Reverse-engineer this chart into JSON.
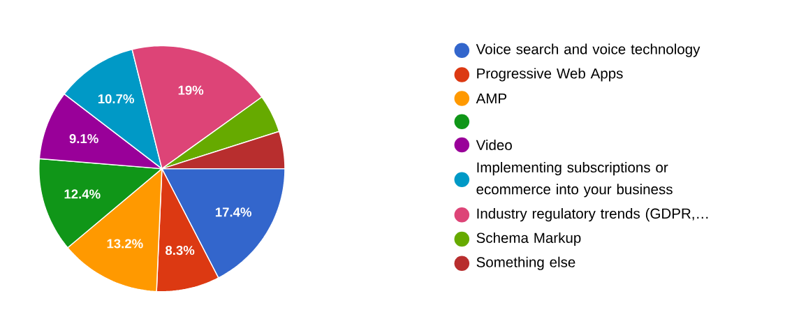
{
  "chart_data": {
    "type": "pie",
    "categories": [
      "Voice search and voice technology",
      "Progressive Web Apps",
      "AMP",
      null,
      "Video",
      "Implementing subscriptions or ecommerce into your business",
      "Industry regulatory trends (GDPR,…",
      "Schema Markup",
      "Something else"
    ],
    "values": [
      17.4,
      8.3,
      13.2,
      12.4,
      9.1,
      10.7,
      19,
      5.0,
      4.9
    ],
    "value_labels": [
      "17.4%",
      "8.3%",
      "13.2%",
      "12.4%",
      "9.1%",
      "10.7%",
      "19%",
      null,
      null
    ],
    "colors": [
      "#3366cc",
      "#dc3912",
      "#ff9900",
      "#109618",
      "#990099",
      "#0099c6",
      "#dd4477",
      "#66aa00",
      "#b82e2e"
    ],
    "legend": "right"
  }
}
